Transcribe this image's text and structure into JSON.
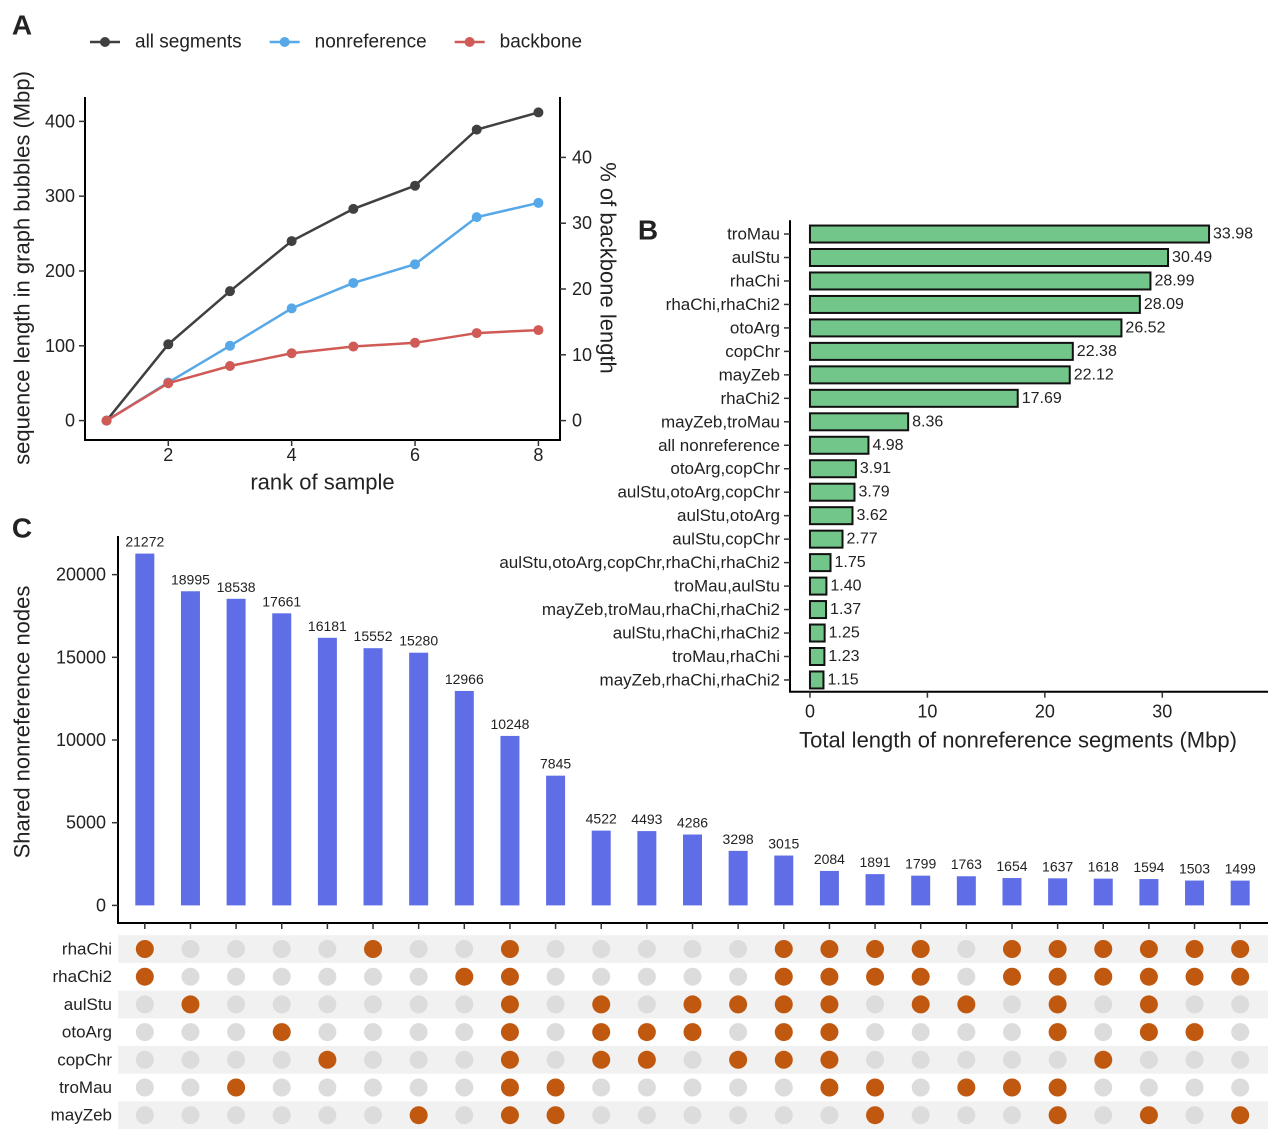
{
  "chart_data": [
    {
      "panel": "A",
      "type": "line",
      "x": [
        1,
        2,
        3,
        4,
        5,
        6,
        7,
        8
      ],
      "series": [
        {
          "name": "all segments",
          "color": "#404040",
          "values": [
            0,
            102,
            173,
            240,
            283,
            314,
            389,
            412
          ]
        },
        {
          "name": "nonreference",
          "color": "#56a8e8",
          "values": [
            0,
            51,
            100,
            150,
            184,
            209,
            272,
            291
          ]
        },
        {
          "name": "backbone",
          "color": "#d05a55",
          "values": [
            0,
            50,
            73,
            90,
            99,
            104,
            117,
            121
          ]
        }
      ],
      "xlabel": "rank of sample",
      "ylabel": "sequence length in graph bubbles (Mbp)",
      "y2label": "% of backbone length",
      "xlim": [
        0.65,
        8.35
      ],
      "xticks": [
        2,
        4,
        6,
        8
      ],
      "ylim": [
        -20.6,
        432.6
      ],
      "yticks": [
        0,
        100,
        200,
        300,
        400
      ],
      "y2lim": [
        -2.34,
        49.18
      ],
      "y2ticks": [
        0,
        10,
        20,
        30,
        40
      ],
      "legend": "top"
    },
    {
      "panel": "B",
      "type": "bar",
      "orientation": "horizontal",
      "categories": [
        "troMau",
        "aulStu",
        "rhaChi",
        "rhaChi,rhaChi2",
        "otoArg",
        "copChr",
        "mayZeb",
        "rhaChi2",
        "mayZeb,troMau",
        "all nonreference",
        "otoArg,copChr",
        "aulStu,otoArg,copChr",
        "aulStu,otoArg",
        "aulStu,copChr",
        "aulStu,otoArg,copChr,rhaChi,rhaChi2",
        "troMau,aulStu",
        "mayZeb,troMau,rhaChi,rhaChi2",
        "aulStu,rhaChi,rhaChi2",
        "troMau,rhaChi",
        "mayZeb,rhaChi,rhaChi2"
      ],
      "values": [
        33.98,
        30.49,
        28.99,
        28.09,
        26.52,
        22.38,
        22.12,
        17.69,
        8.36,
        4.98,
        3.91,
        3.79,
        3.62,
        2.77,
        1.75,
        1.4,
        1.37,
        1.25,
        1.23,
        1.15
      ],
      "value_labels": [
        "33.98",
        "30.49",
        "28.99",
        "28.09",
        "26.52",
        "22.38",
        "22.12",
        "17.69",
        "8.36",
        "4.98",
        "3.91",
        "3.79",
        "3.62",
        "2.77",
        "1.75",
        "1.40",
        "1.37",
        "1.25",
        "1.23",
        "1.15"
      ],
      "color": "#72c68a",
      "xlabel": "Total length of nonreference segments (Mbp)",
      "xlim": [
        -1.7,
        39
      ],
      "xticks": [
        0,
        10,
        20,
        30
      ]
    },
    {
      "panel": "C",
      "type": "upset",
      "values": [
        21272,
        18995,
        18538,
        17661,
        16181,
        15552,
        15280,
        12966,
        10248,
        7845,
        4522,
        4493,
        4286,
        3298,
        3015,
        2084,
        1891,
        1799,
        1763,
        1654,
        1637,
        1618,
        1594,
        1503,
        1499
      ],
      "color": "#5f6ee6",
      "dot_color": "#c0580f",
      "ylabel": "Shared nonreference nodes",
      "ylim": [
        -1064,
        22336
      ],
      "yticks": [
        0,
        5000,
        10000,
        15000,
        20000
      ],
      "sets": [
        "rhaChi",
        "rhaChi2",
        "aulStu",
        "otoArg",
        "copChr",
        "troMau",
        "mayZeb"
      ],
      "membership": [
        [
          1,
          0,
          0,
          0,
          0,
          1,
          0,
          0,
          1,
          0,
          0,
          0,
          0,
          0,
          1,
          1,
          1,
          1,
          0,
          1,
          1,
          1,
          1,
          1,
          1
        ],
        [
          1,
          0,
          0,
          0,
          0,
          0,
          0,
          1,
          1,
          0,
          0,
          0,
          0,
          0,
          1,
          1,
          1,
          1,
          0,
          1,
          1,
          1,
          1,
          1,
          1
        ],
        [
          0,
          1,
          0,
          0,
          0,
          0,
          0,
          0,
          1,
          0,
          1,
          0,
          1,
          1,
          1,
          1,
          0,
          1,
          1,
          0,
          1,
          0,
          1,
          0,
          0
        ],
        [
          0,
          0,
          0,
          1,
          0,
          0,
          0,
          0,
          1,
          0,
          1,
          1,
          1,
          0,
          1,
          1,
          0,
          0,
          0,
          0,
          1,
          0,
          1,
          1,
          0
        ],
        [
          0,
          0,
          0,
          0,
          1,
          0,
          0,
          0,
          1,
          0,
          1,
          1,
          0,
          1,
          1,
          1,
          0,
          0,
          0,
          0,
          0,
          1,
          0,
          0,
          0
        ],
        [
          0,
          0,
          1,
          0,
          0,
          0,
          0,
          0,
          1,
          1,
          0,
          0,
          0,
          0,
          0,
          1,
          1,
          0,
          1,
          1,
          1,
          0,
          0,
          0,
          0
        ],
        [
          0,
          0,
          0,
          0,
          0,
          0,
          1,
          0,
          1,
          1,
          0,
          0,
          0,
          0,
          0,
          0,
          1,
          0,
          0,
          0,
          1,
          0,
          1,
          0,
          1
        ]
      ]
    }
  ]
}
